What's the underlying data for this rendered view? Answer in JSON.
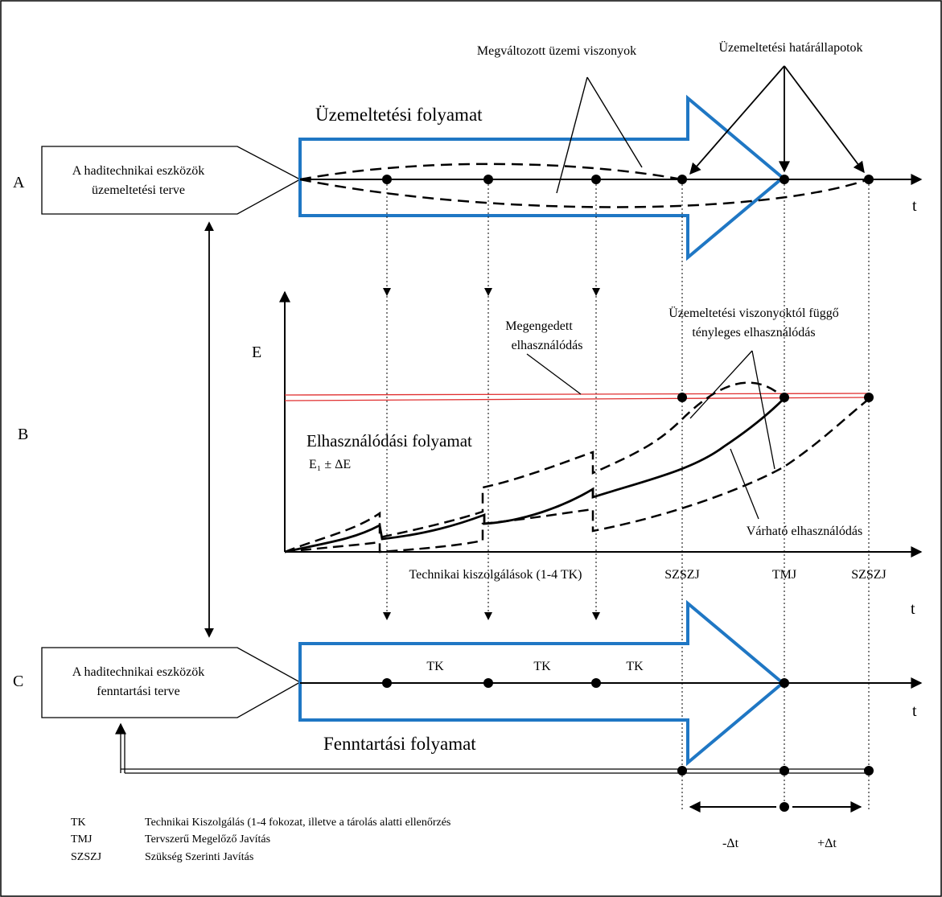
{
  "rows": {
    "a": "A",
    "b": "B",
    "c": "C"
  },
  "boxes": {
    "operation_plan": {
      "line1": "A haditechnikai eszközök",
      "line2": "üzemeltetési terve"
    },
    "maintenance_plan": {
      "line1": "A haditechnikai eszközök",
      "line2": "fenntartási terve"
    }
  },
  "processes": {
    "operation": "Üzemeltetési folyamat",
    "wear": "Elhasználódási folyamat",
    "maintenance": "Fenntartási folyamat"
  },
  "annotations": {
    "changed_conditions": "Megváltozott üzemi viszonyok",
    "limit_states": "Üzemeltetési határállapotok",
    "allowed_wear_1": "Megengedett",
    "allowed_wear_2": "elhasználódás",
    "actual_wear_1": "Üzemeltetési viszonyoktól függő",
    "actual_wear_2": "tényleges elhasználódás",
    "expected_wear": "Várható elhasználódás",
    "wear_range": "E₁ ± ΔE",
    "services": "Technikai kiszolgálások (1-4 TK)"
  },
  "axes": {
    "t": "t",
    "e": "E"
  },
  "events": {
    "szszj_1": "SZSZJ",
    "tmj": "TMJ",
    "szszj_2": "SZSZJ"
  },
  "tk_labels": [
    "TK",
    "TK",
    "TK"
  ],
  "delta": {
    "minus": "-Δt",
    "plus": "+Δt"
  },
  "legend": [
    {
      "abbr": "TK",
      "text": "Technikai Kiszolgálás (1-4 fokozat, illetve a tárolás alatti ellenőrzés"
    },
    {
      "abbr": "TMJ",
      "text": "Tervszerű Megelőző Javítás"
    },
    {
      "abbr": "SZSZJ",
      "text": "Szükség Szerinti Javítás"
    }
  ],
  "colors": {
    "arrow": "#1f77c4",
    "limit": "#e03030",
    "line": "#000000"
  }
}
